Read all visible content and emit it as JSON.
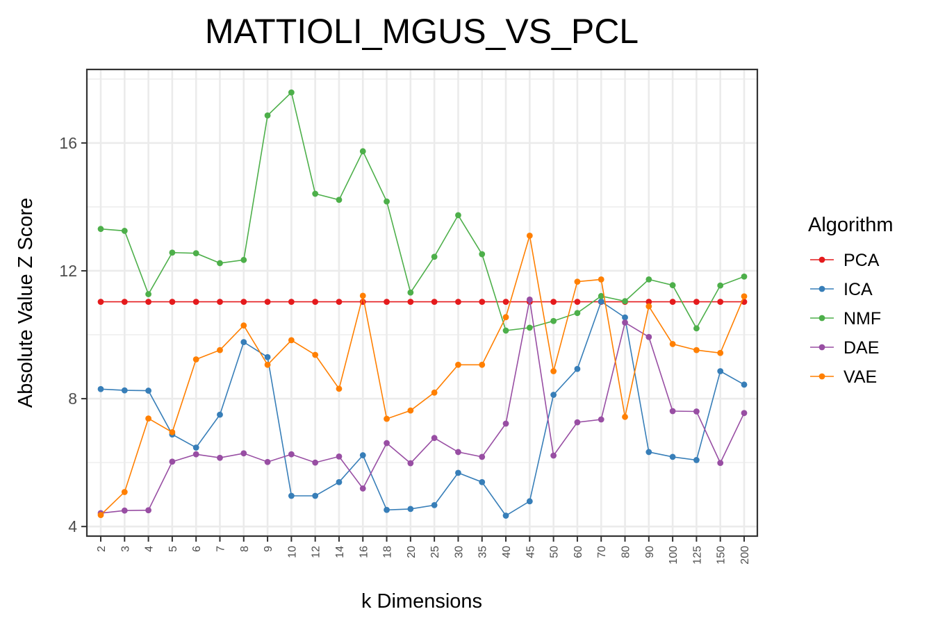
{
  "chart_data": {
    "type": "line",
    "title": "MATTIOLI_MGUS_VS_PCL",
    "xlabel": "k Dimensions",
    "ylabel": "Absolute Value Z Score",
    "categories": [
      "2",
      "3",
      "4",
      "5",
      "6",
      "7",
      "8",
      "9",
      "10",
      "12",
      "14",
      "16",
      "18",
      "20",
      "25",
      "30",
      "35",
      "40",
      "45",
      "50",
      "60",
      "70",
      "80",
      "90",
      "100",
      "125",
      "150",
      "200"
    ],
    "y_ticks": [
      4,
      8,
      12,
      16
    ],
    "ylim": [
      3.7,
      18.3
    ],
    "grid": true,
    "legend": {
      "title": "Algorithm",
      "position": "right"
    },
    "series": [
      {
        "name": "PCA",
        "color": "#e41a1c",
        "values": [
          11.03,
          11.03,
          11.03,
          11.03,
          11.03,
          11.03,
          11.03,
          11.03,
          11.03,
          11.03,
          11.03,
          11.03,
          11.03,
          11.03,
          11.03,
          11.03,
          11.03,
          11.03,
          11.03,
          11.03,
          11.03,
          11.03,
          11.03,
          11.03,
          11.03,
          11.03,
          11.03,
          11.03
        ]
      },
      {
        "name": "ICA",
        "color": "#377eb8",
        "values": [
          8.3,
          8.26,
          8.25,
          6.88,
          6.47,
          7.5,
          9.77,
          9.3,
          4.96,
          4.96,
          5.39,
          6.23,
          4.52,
          4.55,
          4.67,
          5.68,
          5.39,
          4.34,
          4.79,
          8.12,
          8.93,
          11.04,
          10.54,
          6.33,
          6.18,
          6.08,
          8.86,
          8.44
        ]
      },
      {
        "name": "NMF",
        "color": "#4daf4a",
        "values": [
          13.31,
          13.25,
          11.27,
          12.57,
          12.55,
          12.24,
          12.34,
          16.86,
          17.58,
          14.41,
          14.22,
          15.74,
          14.17,
          11.32,
          12.44,
          13.74,
          12.52,
          10.13,
          10.22,
          10.43,
          10.68,
          11.21,
          11.05,
          11.73,
          11.55,
          10.2,
          11.54,
          11.82
        ]
      },
      {
        "name": "DAE",
        "color": "#984ea3",
        "values": [
          4.42,
          4.5,
          4.51,
          6.03,
          6.26,
          6.15,
          6.29,
          6.02,
          6.26,
          6.0,
          6.19,
          5.19,
          6.61,
          5.98,
          6.77,
          6.33,
          6.18,
          7.22,
          11.1,
          6.22,
          7.26,
          7.35,
          10.38,
          9.93,
          7.61,
          7.6,
          5.99,
          7.55
        ]
      },
      {
        "name": "VAE",
        "color": "#ff7f00",
        "values": [
          4.36,
          5.08,
          7.38,
          6.95,
          9.23,
          9.52,
          10.29,
          9.06,
          9.83,
          9.37,
          8.31,
          11.22,
          7.37,
          7.63,
          8.19,
          9.06,
          9.06,
          10.55,
          13.1,
          8.86,
          11.66,
          11.73,
          7.43,
          10.89,
          9.71,
          9.52,
          9.43,
          11.2
        ]
      }
    ]
  }
}
